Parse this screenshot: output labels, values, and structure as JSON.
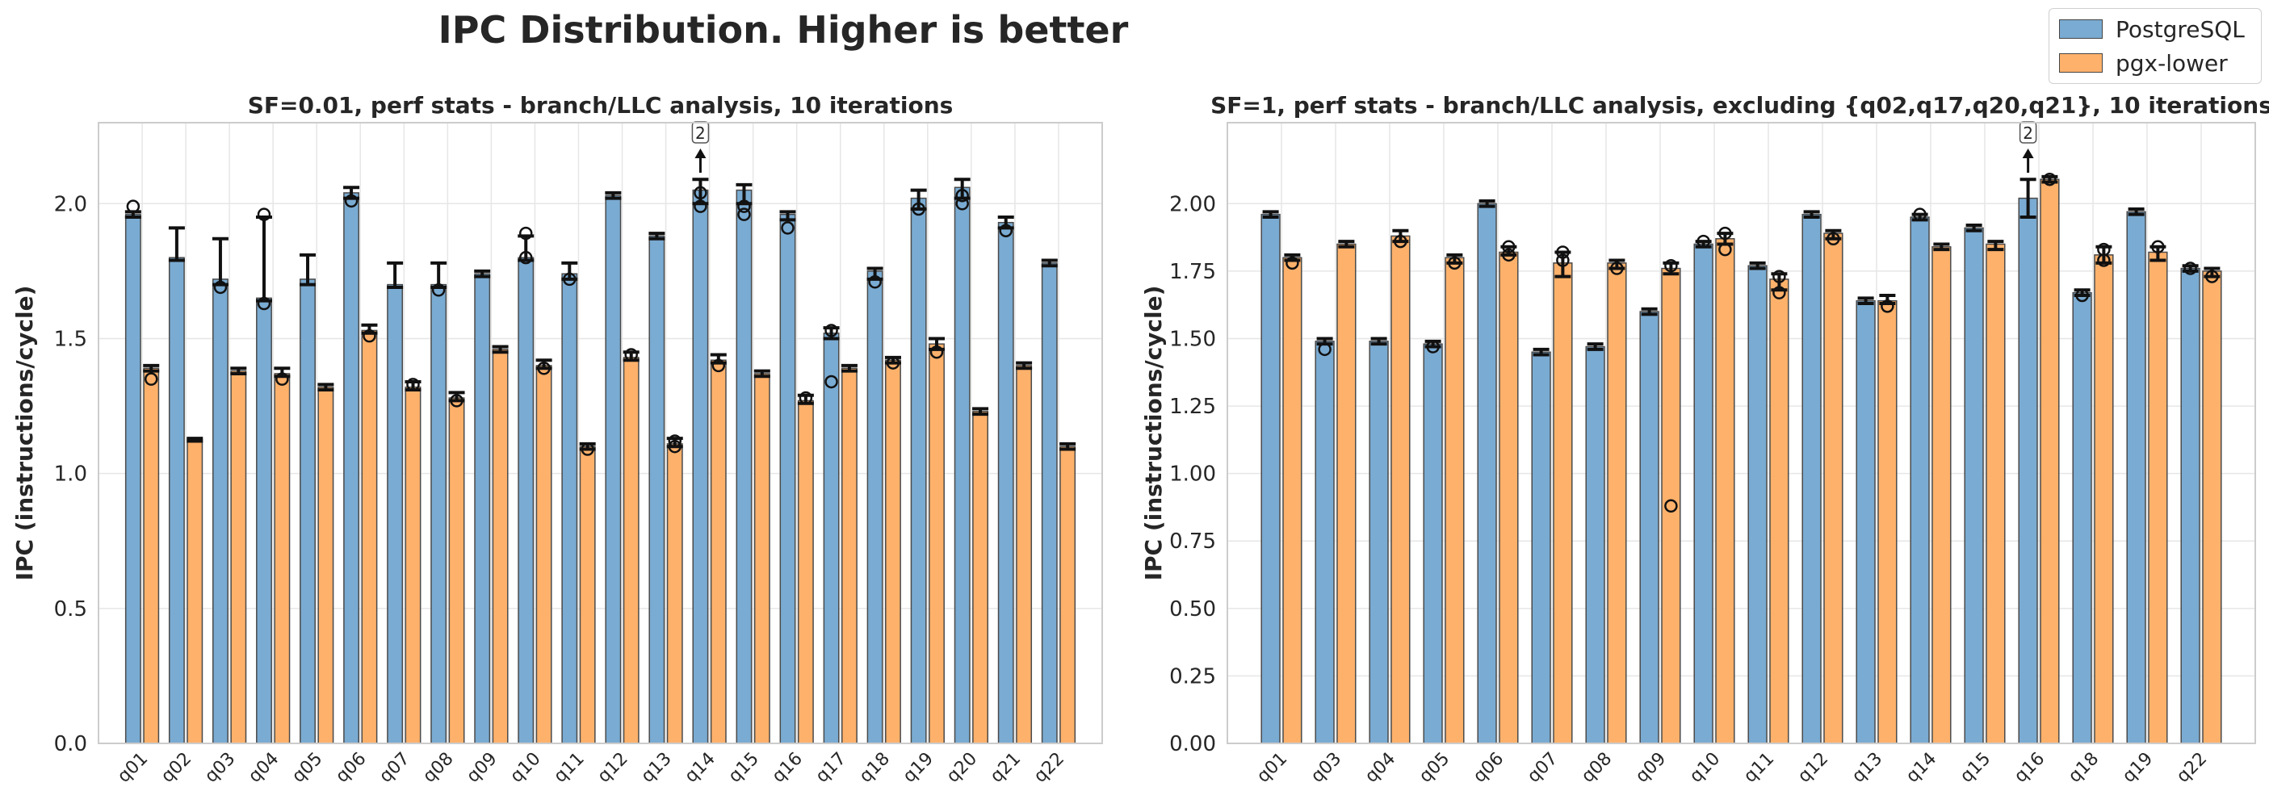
{
  "suptitle": "IPC Distribution. Higher is better",
  "legend": {
    "entries": [
      {
        "label": "PostgreSQL",
        "color": "#7aabd2"
      },
      {
        "label": "pgx-lower",
        "color": "#fdb16b"
      }
    ]
  },
  "colors": {
    "postgres": "#7aabd2",
    "pgx": "#fdb16b",
    "bar_edge": "#4a4a4a",
    "grid": "#e6e6e6",
    "frame": "#cccccc"
  },
  "chart_data": [
    {
      "type": "bar",
      "title": "SF=0.01, perf stats - branch/LLC analysis, 10 iterations",
      "ylabel": "IPC (instructions/cycle)",
      "xlabel": "",
      "ylim": [
        0,
        2.3
      ],
      "yticks": [
        "0.0",
        "0.5",
        "1.0",
        "1.5",
        "2.0"
      ],
      "categories": [
        "q01",
        "q02",
        "q03",
        "q04",
        "q05",
        "q06",
        "q07",
        "q08",
        "q09",
        "q10",
        "q11",
        "q12",
        "q13",
        "q14",
        "q15",
        "q16",
        "q17",
        "q18",
        "q19",
        "q20",
        "q21",
        "q22"
      ],
      "series": [
        {
          "name": "PostgreSQL",
          "values": [
            1.96,
            1.8,
            1.72,
            1.65,
            1.72,
            2.04,
            1.7,
            1.7,
            1.74,
            1.8,
            1.74,
            2.03,
            1.88,
            2.05,
            2.05,
            1.96,
            1.52,
            1.75,
            2.02,
            2.06,
            1.93,
            1.78
          ],
          "err_low": [
            1.95,
            1.79,
            1.7,
            1.64,
            1.7,
            2.02,
            1.69,
            1.69,
            1.73,
            1.79,
            1.72,
            2.02,
            1.87,
            2.0,
            2.0,
            1.94,
            1.5,
            1.72,
            1.98,
            2.02,
            1.91,
            1.77
          ],
          "err_high": [
            1.97,
            1.91,
            1.87,
            1.95,
            1.81,
            2.06,
            1.78,
            1.78,
            1.75,
            1.88,
            1.78,
            2.04,
            1.89,
            2.09,
            2.07,
            1.97,
            1.54,
            1.76,
            2.05,
            2.09,
            1.95,
            1.79
          ]
        },
        {
          "name": "pgx-lower",
          "values": [
            1.39,
            1.12,
            1.38,
            1.37,
            1.32,
            1.53,
            1.32,
            1.28,
            1.46,
            1.4,
            1.1,
            1.43,
            1.11,
            1.42,
            1.37,
            1.27,
            1.39,
            1.42,
            1.48,
            1.23,
            1.4,
            1.1
          ],
          "err_low": [
            1.38,
            1.12,
            1.37,
            1.36,
            1.31,
            1.52,
            1.31,
            1.27,
            1.45,
            1.39,
            1.09,
            1.42,
            1.1,
            1.41,
            1.36,
            1.26,
            1.38,
            1.41,
            1.46,
            1.22,
            1.39,
            1.09
          ],
          "err_high": [
            1.4,
            1.13,
            1.39,
            1.39,
            1.33,
            1.55,
            1.34,
            1.3,
            1.47,
            1.42,
            1.11,
            1.45,
            1.13,
            1.44,
            1.38,
            1.29,
            1.4,
            1.43,
            1.5,
            1.24,
            1.41,
            1.11
          ]
        }
      ],
      "outliers_postgres": [
        [
          1.99
        ],
        [],
        [
          1.69
        ],
        [
          1.96,
          1.63
        ],
        [],
        [
          2.01
        ],
        [],
        [
          1.68
        ],
        [],
        [
          1.89,
          1.8
        ],
        [
          1.72
        ],
        [],
        [],
        [
          2.04,
          1.99
        ],
        [
          1.96,
          1.99
        ],
        [
          1.91
        ],
        [
          1.53,
          1.34
        ],
        [
          1.71
        ],
        [
          1.98
        ],
        [
          2.0,
          2.03
        ],
        [
          1.9
        ],
        []
      ],
      "outliers_pgx": [
        [
          1.35
        ],
        [],
        [],
        [
          1.35
        ],
        [],
        [
          1.51
        ],
        [
          1.33
        ],
        [
          1.27
        ],
        [],
        [
          1.39
        ],
        [
          1.09
        ],
        [
          1.44
        ],
        [
          1.12,
          1.1
        ],
        [
          1.4
        ],
        [],
        [
          1.28
        ],
        [],
        [
          1.41
        ],
        [
          1.45
        ],
        [],
        [],
        []
      ],
      "off_scale_marker": {
        "category": "q14",
        "label": "2"
      }
    },
    {
      "type": "bar",
      "title": "SF=1, perf stats - branch/LLC analysis, excluding {q02,q17,q20,q21}, 10 iterations",
      "ylabel": "IPC (instructions/cycle)",
      "xlabel": "",
      "ylim": [
        0,
        2.3
      ],
      "yticks": [
        "0.00",
        "0.25",
        "0.50",
        "0.75",
        "1.00",
        "1.25",
        "1.50",
        "1.75",
        "2.00"
      ],
      "categories": [
        "q01",
        "q03",
        "q04",
        "q05",
        "q06",
        "q07",
        "q08",
        "q09",
        "q10",
        "q11",
        "q12",
        "q13",
        "q14",
        "q15",
        "q16",
        "q18",
        "q19",
        "q22"
      ],
      "series": [
        {
          "name": "PostgreSQL",
          "values": [
            1.96,
            1.49,
            1.49,
            1.48,
            2.0,
            1.45,
            1.47,
            1.6,
            1.85,
            1.77,
            1.96,
            1.64,
            1.95,
            1.91,
            2.02,
            1.67,
            1.97,
            1.76
          ],
          "err_low": [
            1.95,
            1.48,
            1.48,
            1.47,
            1.99,
            1.44,
            1.46,
            1.59,
            1.84,
            1.76,
            1.95,
            1.63,
            1.94,
            1.9,
            1.95,
            1.66,
            1.96,
            1.75
          ],
          "err_high": [
            1.97,
            1.5,
            1.5,
            1.49,
            2.01,
            1.46,
            1.48,
            1.61,
            1.86,
            1.78,
            1.97,
            1.65,
            1.96,
            1.92,
            2.09,
            1.68,
            1.98,
            1.77
          ]
        },
        {
          "name": "pgx-lower",
          "values": [
            1.8,
            1.85,
            1.88,
            1.8,
            1.82,
            1.78,
            1.78,
            1.76,
            1.87,
            1.72,
            1.89,
            1.64,
            1.84,
            1.85,
            2.09,
            1.81,
            1.82,
            1.75
          ],
          "err_low": [
            1.79,
            1.84,
            1.86,
            1.78,
            1.81,
            1.73,
            1.76,
            1.74,
            1.85,
            1.68,
            1.87,
            1.63,
            1.83,
            1.83,
            2.08,
            1.78,
            1.79,
            1.73
          ],
          "err_high": [
            1.81,
            1.86,
            1.9,
            1.81,
            1.84,
            1.82,
            1.79,
            1.78,
            1.89,
            1.74,
            1.9,
            1.66,
            1.85,
            1.86,
            2.1,
            1.84,
            1.84,
            1.76
          ]
        }
      ],
      "outliers_postgres": [
        [],
        [
          1.46
        ],
        [],
        [
          1.47
        ],
        [],
        [],
        [],
        [],
        [
          1.86
        ],
        [],
        [],
        [],
        [
          1.96
        ],
        [],
        [],
        [
          1.66
        ],
        [],
        [
          1.76
        ]
      ],
      "outliers_pgx": [
        [
          1.78
        ],
        [],
        [
          1.86
        ],
        [
          1.78
        ],
        [
          1.84,
          1.81
        ],
        [
          1.82,
          1.79
        ],
        [
          1.76
        ],
        [
          1.77,
          0.88
        ],
        [
          1.89,
          1.83
        ],
        [
          1.73,
          1.67
        ],
        [
          1.87
        ],
        [
          1.62
        ],
        [],
        [],
        [
          2.09
        ],
        [
          1.79,
          1.83
        ],
        [
          1.84
        ],
        [
          1.73
        ]
      ],
      "off_scale_marker": {
        "category": "q16",
        "label": "2"
      }
    }
  ]
}
